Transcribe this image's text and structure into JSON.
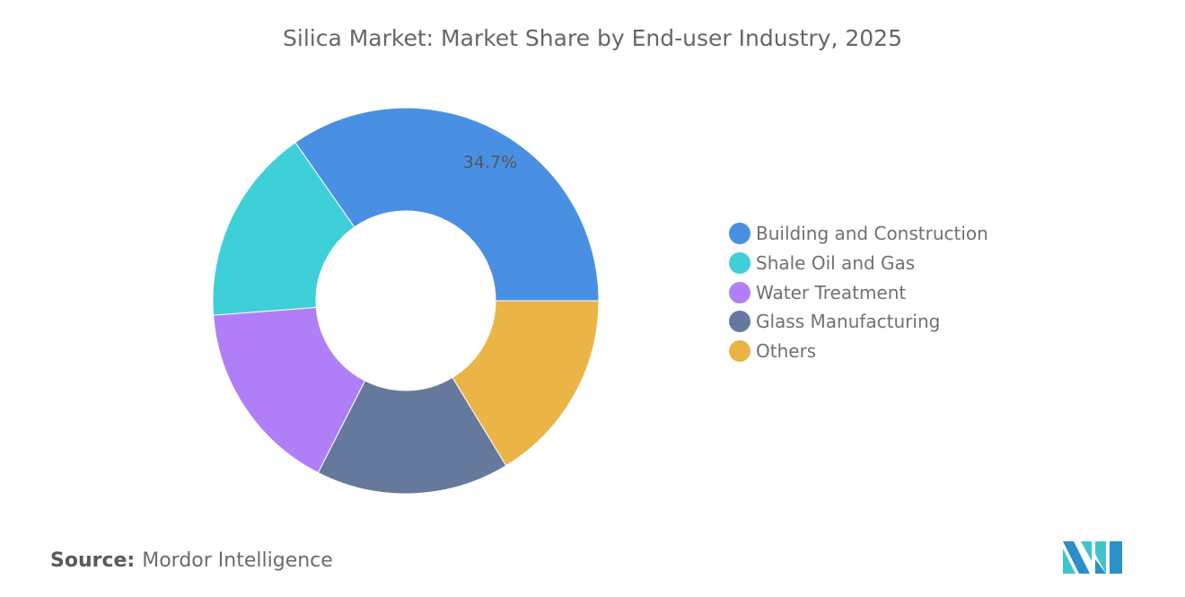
{
  "chart_data": {
    "type": "pie",
    "variant": "donut",
    "title": "Silica Market: Market Share by End-user Industry, 2025",
    "categories": [
      "Building and Construction",
      "Shale Oil and Gas",
      "Water Treatment",
      "Glass Manufacturing",
      "Others"
    ],
    "values": [
      34.7,
      16.5,
      16.3,
      16.2,
      16.3
    ],
    "unit": "%",
    "data_labels": [
      "34.7%",
      "",
      "",
      "",
      ""
    ],
    "colors": [
      "#4a90e2",
      "#3ecfd9",
      "#b07ff7",
      "#64799b",
      "#ebb447"
    ],
    "legend_position": "right"
  },
  "source": {
    "label": "Source:",
    "value": "Mordor Intelligence"
  },
  "logo": {
    "name": "mordor-intelligence-logo",
    "colors": [
      "#2c8fc9",
      "#3fc4c9"
    ]
  }
}
